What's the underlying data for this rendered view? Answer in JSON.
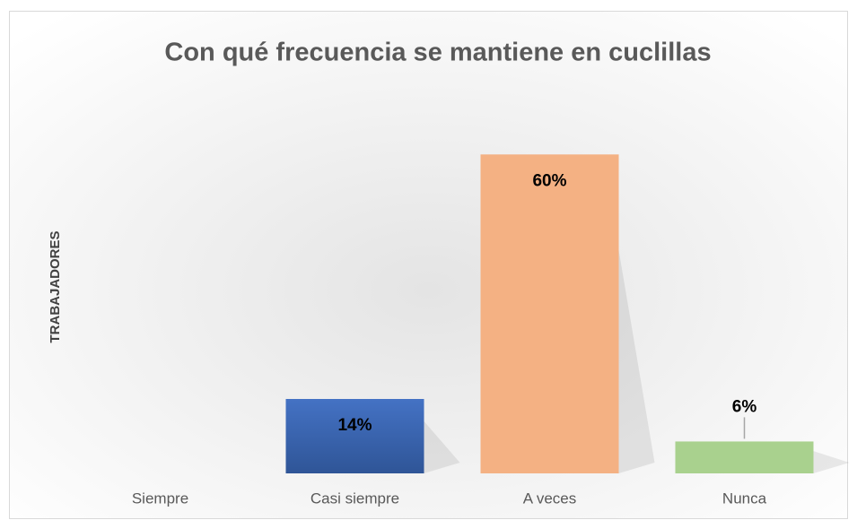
{
  "chart_data": {
    "type": "bar",
    "title": "Con qué frecuencia se mantiene en cuclillas",
    "y_label": "TRABAJADORES",
    "categories": [
      "Siempre",
      "Casi siempre",
      "A veces",
      "Nunca"
    ],
    "values": [
      0,
      14,
      60,
      6
    ],
    "value_labels": [
      null,
      "14%",
      "60%",
      "6%"
    ],
    "colors": [
      "#4472c4",
      "#4472c4",
      "#f4b183",
      "#a9d18e"
    ],
    "ylim": [
      0,
      70
    ]
  }
}
